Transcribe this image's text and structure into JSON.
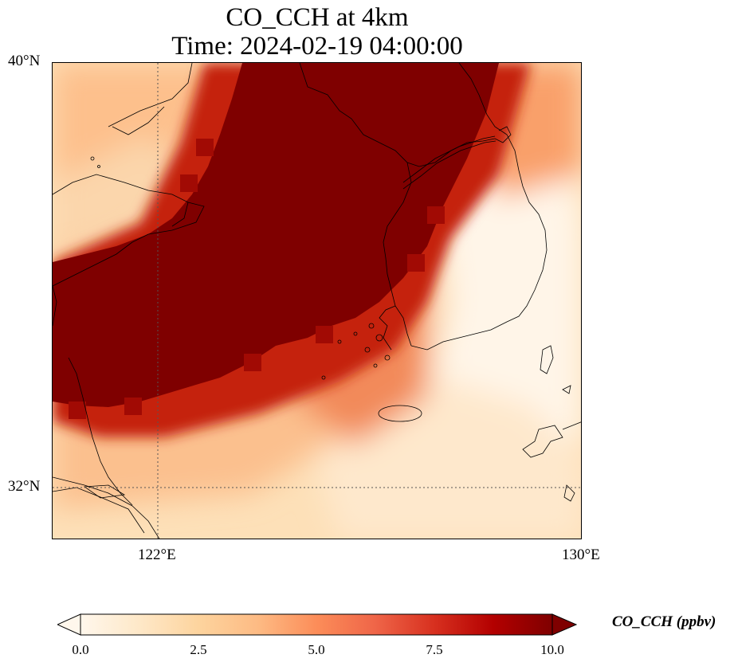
{
  "title": {
    "line1": "CO_CCH at 4km",
    "line2": "Time: 2024-02-19 04:00:00"
  },
  "axes": {
    "lat_ticks": [
      "40°N",
      "32°N"
    ],
    "lon_ticks": [
      "122°E",
      "130°E"
    ],
    "lat_range": [
      31,
      40
    ],
    "lon_range": [
      120,
      130
    ],
    "gridlines": "dotted"
  },
  "colorbar": {
    "label": "CO_CCH (ppbv)",
    "ticks": [
      "0.0",
      "2.5",
      "5.0",
      "7.5",
      "10.0"
    ],
    "range": [
      0,
      10
    ],
    "extend": "both",
    "colormap": "OrRd",
    "colors": [
      "#fff7ec",
      "#fee8c8",
      "#fdd49e",
      "#fdbb84",
      "#fc8d59",
      "#ef6548",
      "#d7301f",
      "#b30000",
      "#7f0000"
    ]
  },
  "field": {
    "description_free": true,
    "max_color": "#7f0000",
    "min_color": "#fff7ec"
  }
}
